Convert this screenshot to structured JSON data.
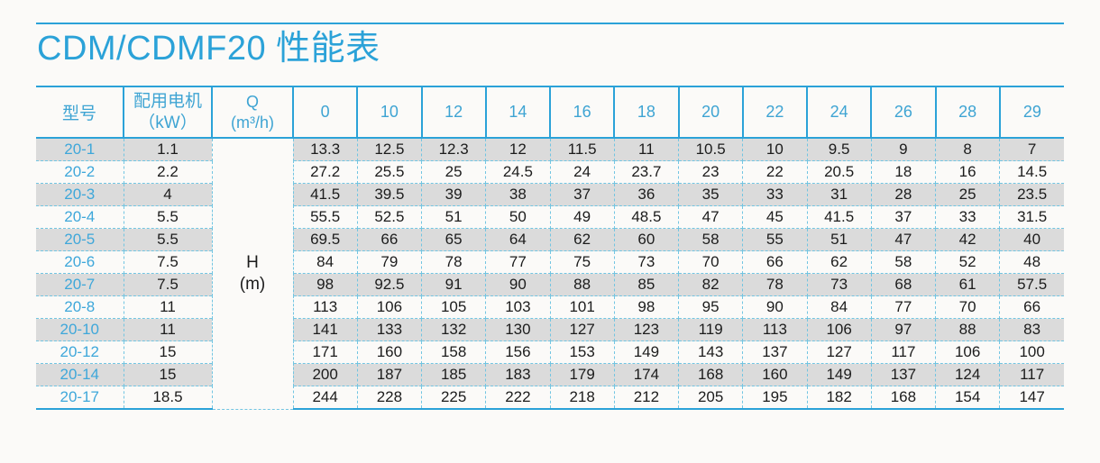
{
  "title": "CDM/CDMF20 性能表",
  "colors": {
    "accent_blue": "#2ba2d8",
    "header_text_blue": "#3ea4d3",
    "dashed_border_blue": "#72c5e2",
    "stripe_gray": "#dbdbdb",
    "data_text": "#1c1c1c"
  },
  "table": {
    "header": {
      "model_label": "型号",
      "motor_line1": "配用电机",
      "motor_line2": "（kW）",
      "q_line1": "Q",
      "q_line2": "(m³/h)",
      "flows": [
        "0",
        "10",
        "12",
        "14",
        "16",
        "18",
        "20",
        "22",
        "24",
        "26",
        "28",
        "29"
      ]
    },
    "head_unit_line1": "H",
    "head_unit_line2": "(m)",
    "rows": [
      {
        "model": "20-1",
        "power": "1.1",
        "values": [
          "13.3",
          "12.5",
          "12.3",
          "12",
          "11.5",
          "11",
          "10.5",
          "10",
          "9.5",
          "9",
          "8",
          "7"
        ]
      },
      {
        "model": "20-2",
        "power": "2.2",
        "values": [
          "27.2",
          "25.5",
          "25",
          "24.5",
          "24",
          "23.7",
          "23",
          "22",
          "20.5",
          "18",
          "16",
          "14.5"
        ]
      },
      {
        "model": "20-3",
        "power": "4",
        "values": [
          "41.5",
          "39.5",
          "39",
          "38",
          "37",
          "36",
          "35",
          "33",
          "31",
          "28",
          "25",
          "23.5"
        ]
      },
      {
        "model": "20-4",
        "power": "5.5",
        "values": [
          "55.5",
          "52.5",
          "51",
          "50",
          "49",
          "48.5",
          "47",
          "45",
          "41.5",
          "37",
          "33",
          "31.5"
        ]
      },
      {
        "model": "20-5",
        "power": "5.5",
        "values": [
          "69.5",
          "66",
          "65",
          "64",
          "62",
          "60",
          "58",
          "55",
          "51",
          "47",
          "42",
          "40"
        ]
      },
      {
        "model": "20-6",
        "power": "7.5",
        "values": [
          "84",
          "79",
          "78",
          "77",
          "75",
          "73",
          "70",
          "66",
          "62",
          "58",
          "52",
          "48"
        ]
      },
      {
        "model": "20-7",
        "power": "7.5",
        "values": [
          "98",
          "92.5",
          "91",
          "90",
          "88",
          "85",
          "82",
          "78",
          "73",
          "68",
          "61",
          "57.5"
        ]
      },
      {
        "model": "20-8",
        "power": "11",
        "values": [
          "113",
          "106",
          "105",
          "103",
          "101",
          "98",
          "95",
          "90",
          "84",
          "77",
          "70",
          "66"
        ]
      },
      {
        "model": "20-10",
        "power": "11",
        "values": [
          "141",
          "133",
          "132",
          "130",
          "127",
          "123",
          "119",
          "113",
          "106",
          "97",
          "88",
          "83"
        ]
      },
      {
        "model": "20-12",
        "power": "15",
        "values": [
          "171",
          "160",
          "158",
          "156",
          "153",
          "149",
          "143",
          "137",
          "127",
          "117",
          "106",
          "100"
        ]
      },
      {
        "model": "20-14",
        "power": "15",
        "values": [
          "200",
          "187",
          "185",
          "183",
          "179",
          "174",
          "168",
          "160",
          "149",
          "137",
          "124",
          "117"
        ]
      },
      {
        "model": "20-17",
        "power": "18.5",
        "values": [
          "244",
          "228",
          "225",
          "222",
          "218",
          "212",
          "205",
          "195",
          "182",
          "168",
          "154",
          "147"
        ]
      }
    ]
  }
}
